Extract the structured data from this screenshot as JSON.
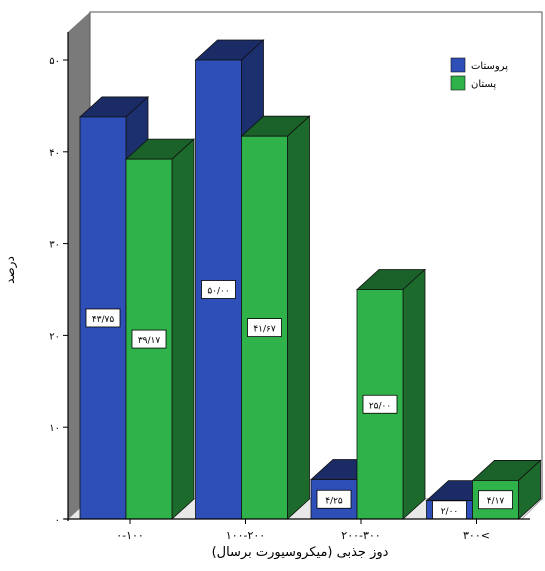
{
  "chart_data": {
    "type": "bar",
    "three_d": true,
    "categories": [
      "۰-۱۰۰",
      "۱۰۰-۲۰۰",
      "۲۰۰-۳۰۰",
      "۳۰۰<"
    ],
    "series": [
      {
        "name": "پروستات",
        "color": "#2f4fb8",
        "values": [
          43.8,
          50.0,
          4.3,
          2.0
        ],
        "labels": [
          "۴۳/۷۵",
          "۵۰/۰۰",
          "۴/۲۵",
          "۲/۰۰"
        ]
      },
      {
        "name": "پستان",
        "color": "#2fb24a",
        "values": [
          39.2,
          41.7,
          25.0,
          4.2
        ],
        "labels": [
          "۳۹/۱۷",
          "۴۱/۶۷",
          "۲۵/۰۰",
          "۴/۱۷"
        ]
      }
    ],
    "ylabel": "درصد",
    "xlabel": "دوز جذبی (میکروسیورت برسال)",
    "ylim": [
      0,
      50
    ],
    "yticks": [
      0,
      10,
      20,
      30,
      40,
      50
    ],
    "ytick_labels": [
      "۰",
      "۱۰",
      "۲۰",
      "۳۰",
      "۴۰",
      "۵۰"
    ],
    "grid": false,
    "legend_position": "top-right",
    "colors": {
      "wall": "#7a7a7a",
      "floor": "#e8e8e8",
      "axis": "#000000"
    }
  }
}
